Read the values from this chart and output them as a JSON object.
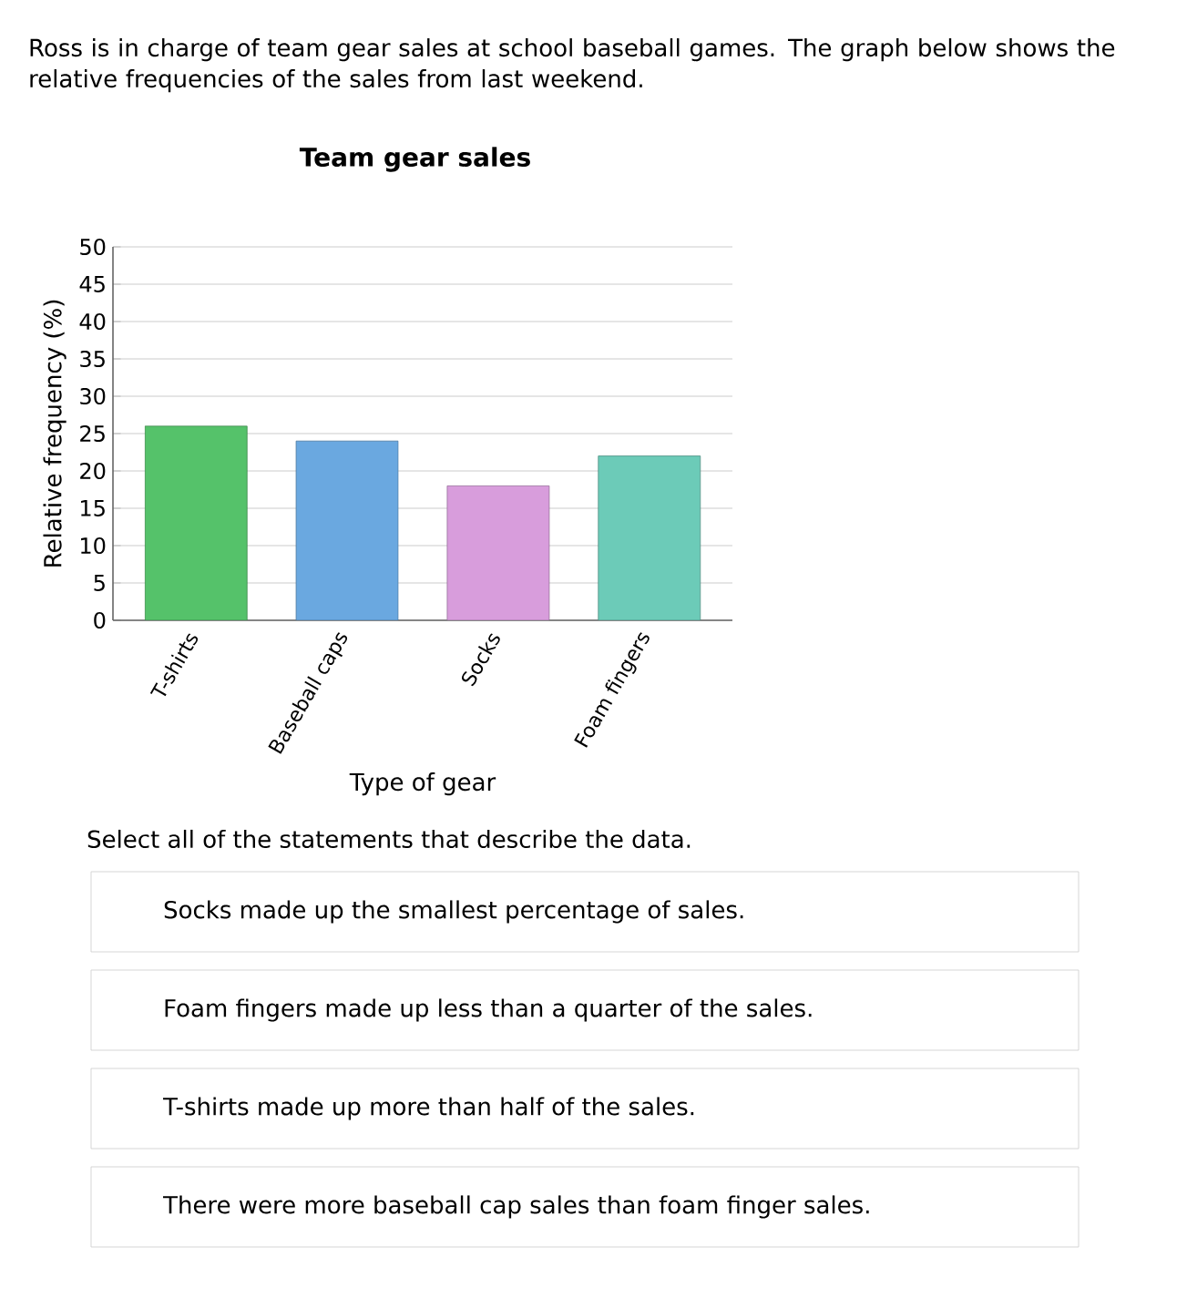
{
  "chart_data": {
    "type": "bar",
    "title": "Team gear sales",
    "subtitle": "Ross is in charge of team gear sales at school baseball games. The graph below shows the relative frequencies of the sales from last weekend.",
    "xlabel": "Type of gear",
    "ylabel": "Relative frequency (%)",
    "categories": [
      "T-shirts",
      "Baseball caps",
      "Socks",
      "Foam fingers"
    ],
    "values": [
      26,
      24,
      18,
      22
    ],
    "colors": [
      "#55c26a",
      "#6aa8e0",
      "#d89ddc",
      "#6ccbb8"
    ],
    "ylim": [
      0,
      50
    ],
    "yticks": [
      0,
      5,
      10,
      15,
      20,
      25,
      30,
      35,
      40,
      45,
      50
    ],
    "grid": "y",
    "annotations": [
      "Select all of the statements that describe the data.",
      "Socks made up the smallest percentage of sales.",
      "Foam fingers made up less than a quarter of the sales.",
      "T-shirts made up more than half of the sales.",
      "There were more baseball cap sales than foam finger sales."
    ]
  }
}
